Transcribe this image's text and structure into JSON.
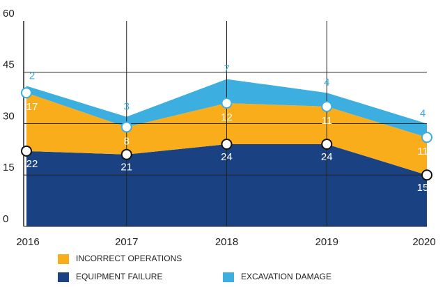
{
  "chart_data": {
    "type": "stacked_area",
    "categories": [
      "2016",
      "2017",
      "2018",
      "2019",
      "2020"
    ],
    "series": [
      {
        "name": "EQUIPMENT FAILURE",
        "color": "#1a4282",
        "values": [
          22,
          21,
          24,
          24,
          15
        ]
      },
      {
        "name": "INCORRECT OPERATIONS",
        "color": "#f9ad1a",
        "values": [
          17,
          8,
          12,
          11,
          11
        ]
      },
      {
        "name": "EXCAVATION DAMAGE",
        "color": "#3daee0",
        "values": [
          2,
          3,
          7,
          4,
          4
        ]
      }
    ],
    "ylim": [
      0,
      60
    ],
    "yticks": [
      0,
      15,
      30,
      45,
      60
    ],
    "grid": true
  }
}
